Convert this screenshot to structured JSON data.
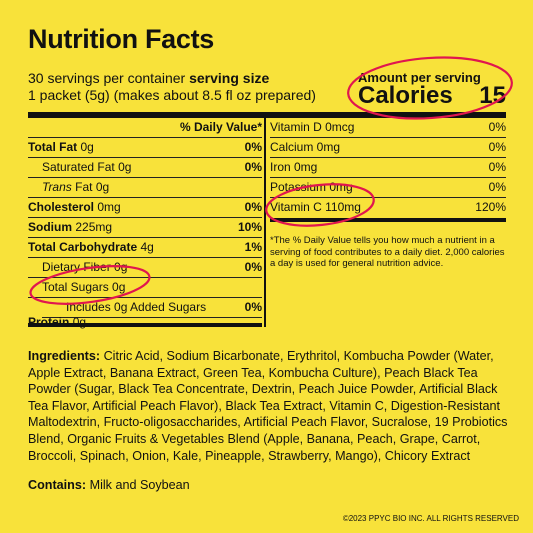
{
  "title": "Nutrition Facts",
  "servings_per_container": "30 servings per container",
  "serving_size_label": "serving size",
  "serving_size_value": "1 packet (5g) (makes about 8.5 fl oz prepared)",
  "amount_per_serving": "Amount per serving",
  "calories_label": "Calories",
  "calories_value": "15",
  "dv_header": "% Daily Value*",
  "left_rows": [
    {
      "label": "Total Fat",
      "amount": "0g",
      "dv": "0%"
    },
    {
      "label": "Saturated Fat",
      "amount": "0g",
      "dv": "0%"
    },
    {
      "label": "Trans",
      "amount": "Fat 0g",
      "dv": ""
    },
    {
      "label": "Cholesterol",
      "amount": "0mg",
      "dv": "0%"
    },
    {
      "label": "Sodium",
      "amount": "225mg",
      "dv": "10%"
    },
    {
      "label": "Total Carbohydrate",
      "amount": "4g",
      "dv": "1%"
    },
    {
      "label": "Dietary Fiber",
      "amount": "0g",
      "dv": "0%"
    },
    {
      "label": "Total Sugars",
      "amount": "0g",
      "dv": ""
    },
    {
      "label": "Includes 0g Added Sugars",
      "amount": "",
      "dv": "0%"
    },
    {
      "label": "Protein",
      "amount": "0g",
      "dv": ""
    }
  ],
  "right_rows": [
    {
      "label": "Vitamin D 0mcg",
      "dv": "0%"
    },
    {
      "label": "Calcium 0mg",
      "dv": "0%"
    },
    {
      "label": "Iron 0mg",
      "dv": "0%"
    },
    {
      "label": "Potassium 0mg",
      "dv": "0%"
    },
    {
      "label": "Vitamin C 110mg",
      "dv": "120%"
    }
  ],
  "footnote": "*The % Daily Value tells you how much a nutrient in a serving of food contributes to a daily diet. 2,000 calories a day is used for general nutrition advice.",
  "ingredients_label": "Ingredients:",
  "ingredients_text": "Citric Acid, Sodium Bicarbonate, Erythritol, Kombucha Powder (Water, Apple Extract, Banana Extract, Green Tea, Kombucha Culture), Peach Black Tea Powder (Sugar, Black Tea Concentrate, Dextrin, Peach Juice Powder, Artificial Black Tea Flavor, Artificial Peach Flavor), Black Tea Extract, Vitamin C, Digestion-Resistant Maltodextrin, Fructo-oligosaccharides, Artificial Peach Flavor, Sucralose, 19 Probiotics Blend, Organic Fruits & Vegetables Blend (Apple, Banana, Peach, Grape, Carrot, Broccoli, Spinach, Onion, Kale, Pineapple, Strawberry, Mango), Chicory Extract",
  "contains_label": "Contains:",
  "contains_text": "Milk and Soybean",
  "copyright": "©2023 PPYC BIO INC. ALL RIGHTS RESERVED",
  "colors": {
    "background": "#f8e23a",
    "highlight_circle": "#e0164f",
    "text": "#111111"
  }
}
